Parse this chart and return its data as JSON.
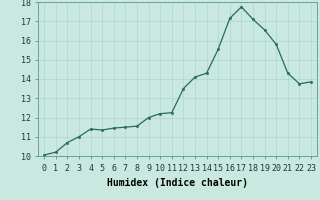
{
  "x_values": [
    0,
    1,
    2,
    3,
    4,
    5,
    6,
    7,
    8,
    9,
    10,
    11,
    12,
    13,
    14,
    15,
    16,
    17,
    18,
    19,
    20,
    21,
    22,
    23
  ],
  "y_values": [
    10.05,
    10.2,
    10.7,
    11.0,
    11.4,
    11.35,
    11.45,
    11.5,
    11.55,
    12.0,
    12.2,
    12.25,
    13.5,
    14.1,
    14.3,
    15.55,
    17.15,
    17.75,
    17.1,
    16.55,
    15.8,
    14.3,
    13.75,
    13.85
  ],
  "line_color": "#2a6b5e",
  "marker_color": "#2a6b5e",
  "background_color": "#c8e8e0",
  "grid_color": "#b0d4cc",
  "xlabel": "Humidex (Indice chaleur)",
  "ylim": [
    10,
    18
  ],
  "xlim": [
    -0.5,
    23.5
  ],
  "yticks": [
    10,
    11,
    12,
    13,
    14,
    15,
    16,
    17,
    18
  ],
  "xticks": [
    0,
    1,
    2,
    3,
    4,
    5,
    6,
    7,
    8,
    9,
    10,
    11,
    12,
    13,
    14,
    15,
    16,
    17,
    18,
    19,
    20,
    21,
    22,
    23
  ],
  "xlabel_fontsize": 7,
  "tick_fontsize": 6,
  "marker_size": 1.8,
  "line_width": 0.9
}
